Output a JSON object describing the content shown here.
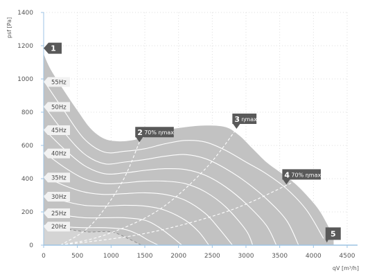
{
  "chart_data": {
    "type": "area",
    "xlabel": "qV [m³/h]",
    "ylabel": "psf [Pa]",
    "xlim": [
      0,
      4500
    ],
    "ylim": [
      0,
      1400
    ],
    "xticks": [
      0,
      500,
      1000,
      1500,
      2000,
      2500,
      3000,
      3500,
      4000,
      4500
    ],
    "yticks": [
      0,
      200,
      400,
      600,
      800,
      1000,
      1200,
      1400
    ],
    "grid": true,
    "colors": {
      "envelope": "#c2c2c2",
      "curve": "#ffffff",
      "marker": "#595959",
      "axis": "#9cc3e4"
    },
    "envelope": {
      "x": [
        0,
        100,
        300,
        500,
        700,
        900,
        1100,
        1300,
        1500,
        1800,
        2100,
        2400,
        2700,
        2900,
        3100,
        3300,
        3500,
        3700,
        3900,
        4100,
        4300,
        4300,
        0
      ],
      "y": [
        1150,
        1060,
        930,
        810,
        700,
        640,
        625,
        630,
        650,
        690,
        710,
        720,
        710,
        660,
        580,
        500,
        440,
        380,
        300,
        200,
        50,
        0,
        0
      ]
    },
    "speed_curves": [
      {
        "label": "55Hz",
        "x": [
          0,
          300,
          600,
          900,
          1200,
          1500,
          1800,
          2100,
          2400,
          2700,
          3000,
          3300,
          3600,
          3900,
          4150
        ],
        "y": [
          990,
          810,
          640,
          560,
          565,
          580,
          610,
          630,
          620,
          570,
          500,
          430,
          340,
          210,
          40
        ]
      },
      {
        "label": "50Hz",
        "x": [
          0,
          300,
          600,
          900,
          1200,
          1500,
          1800,
          2100,
          2400,
          2700,
          3000,
          3300,
          3600,
          3780
        ],
        "y": [
          840,
          680,
          550,
          490,
          500,
          515,
          535,
          545,
          520,
          460,
          380,
          280,
          150,
          0
        ]
      },
      {
        "label": "45Hz",
        "x": [
          0,
          300,
          600,
          900,
          1200,
          1500,
          1800,
          2100,
          2400,
          2700,
          3000,
          3300,
          3450
        ],
        "y": [
          700,
          580,
          480,
          430,
          435,
          450,
          460,
          455,
          420,
          350,
          250,
          120,
          0
        ]
      },
      {
        "label": "40Hz",
        "x": [
          0,
          300,
          600,
          900,
          1200,
          1500,
          1800,
          2100,
          2400,
          2700,
          3000,
          3100
        ],
        "y": [
          560,
          470,
          400,
          370,
          375,
          385,
          385,
          370,
          320,
          230,
          90,
          0
        ]
      },
      {
        "label": "35Hz",
        "x": [
          0,
          300,
          600,
          900,
          1200,
          1500,
          1800,
          2100,
          2400,
          2600,
          2800
        ],
        "y": [
          415,
          360,
          320,
          305,
          310,
          315,
          305,
          270,
          190,
          100,
          0
        ]
      },
      {
        "label": "30Hz",
        "x": [
          0,
          300,
          600,
          900,
          1200,
          1500,
          1800,
          2100,
          2300,
          2450
        ],
        "y": [
          300,
          265,
          240,
          235,
          240,
          235,
          210,
          150,
          80,
          0
        ]
      },
      {
        "label": "25Hz",
        "x": [
          0,
          300,
          600,
          900,
          1200,
          1500,
          1700,
          1900,
          2050
        ],
        "y": [
          200,
          180,
          165,
          165,
          165,
          150,
          110,
          50,
          0
        ]
      },
      {
        "label": "20Hz",
        "x": [
          0,
          300,
          600,
          900,
          1200,
          1400,
          1550,
          1700
        ],
        "y": [
          120,
          110,
          105,
          105,
          95,
          65,
          30,
          0
        ]
      }
    ],
    "efficiency_lines": [
      {
        "label": "70% ηmax",
        "x": [
          250,
          700,
          1150,
          1420
        ],
        "y": [
          0,
          120,
          370,
          620
        ]
      },
      {
        "label": "ηmax",
        "x": [
          250,
          900,
          1700,
          2400,
          2860
        ],
        "y": [
          0,
          60,
          210,
          460,
          700
        ]
      },
      {
        "label": "70% ηmax",
        "x": [
          250,
          1500,
          2700,
          3600,
          4100
        ],
        "y": [
          0,
          70,
          200,
          360,
          470
        ]
      }
    ],
    "low_region_curve": {
      "x": [
        300,
        650,
        1000,
        1250,
        1450
      ],
      "y": [
        100,
        80,
        80,
        40,
        0
      ]
    },
    "markers": [
      {
        "num": "1",
        "label": "",
        "x": 0,
        "y": 1185
      },
      {
        "num": "2",
        "label": "70% ηmax",
        "x": 1420,
        "y": 620
      },
      {
        "num": "3",
        "label": "ηmax",
        "x": 2860,
        "y": 700
      },
      {
        "num": "4",
        "label": "70% ηmax",
        "x": 3600,
        "y": 365
      },
      {
        "num": "5",
        "label": "",
        "x": 4200,
        "y": 15
      }
    ]
  }
}
